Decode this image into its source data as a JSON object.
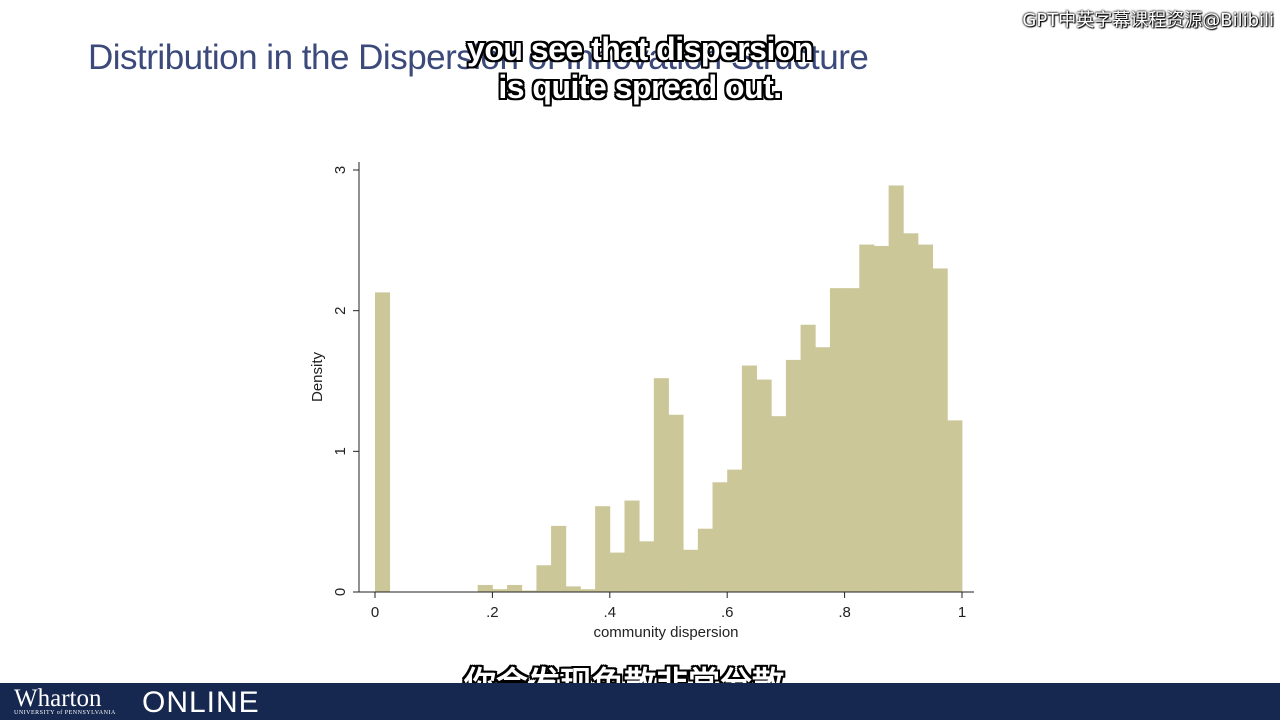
{
  "slide": {
    "title": "Distribution in the Dispersion of Innovation Structure"
  },
  "overlay": {
    "watermark": "GPT中英字幕课程资源@Bilibili",
    "subtitle_en_line1": "you see that dispersion",
    "subtitle_en_line2": "is quite spread out.",
    "subtitle_zh": "你会发现色散非常分散。"
  },
  "footer": {
    "brand": "Wharton",
    "brand_sub": "UNIVERSITY of PENNSYLVANIA",
    "online": "ONLINE"
  },
  "colors": {
    "bar": "#cbc798",
    "axis": "#222222",
    "title": "#3b4a7a",
    "footer_bg": "#16284f"
  },
  "chart_data": {
    "type": "bar",
    "title": "",
    "xlabel": "community dispersion",
    "ylabel": "Density",
    "xlim": [
      -0.03,
      1.02
    ],
    "ylim": [
      0,
      3
    ],
    "grid": false,
    "x_ticks": [
      0,
      0.2,
      0.4,
      0.6,
      0.8,
      1
    ],
    "x_tick_labels": [
      "0",
      ".2",
      ".4",
      ".6",
      ".8",
      "1"
    ],
    "y_ticks": [
      0,
      1,
      2,
      3
    ],
    "y_tick_labels": [
      "0",
      "1",
      "2",
      "3"
    ],
    "bin_width": 0.025,
    "bin_starts": [
      0,
      0.175,
      0.2,
      0.225,
      0.25,
      0.275,
      0.3,
      0.325,
      0.35,
      0.375,
      0.4,
      0.425,
      0.45,
      0.475,
      0.5,
      0.525,
      0.55,
      0.575,
      0.6,
      0.625,
      0.65,
      0.675,
      0.7,
      0.725,
      0.75,
      0.775,
      0.8,
      0.825,
      0.85,
      0.875,
      0.9,
      0.925,
      0.95,
      0.975
    ],
    "values": [
      2.13,
      0.05,
      0.02,
      0.05,
      0.01,
      0.19,
      0.47,
      0.04,
      0.02,
      0.61,
      0.28,
      0.65,
      0.36,
      1.52,
      1.26,
      0.3,
      0.45,
      0.78,
      0.87,
      1.61,
      1.51,
      1.25,
      1.65,
      1.9,
      1.74,
      2.16,
      2.16,
      2.47,
      2.46,
      2.89,
      2.55,
      2.47,
      2.3,
      1.22
    ]
  }
}
